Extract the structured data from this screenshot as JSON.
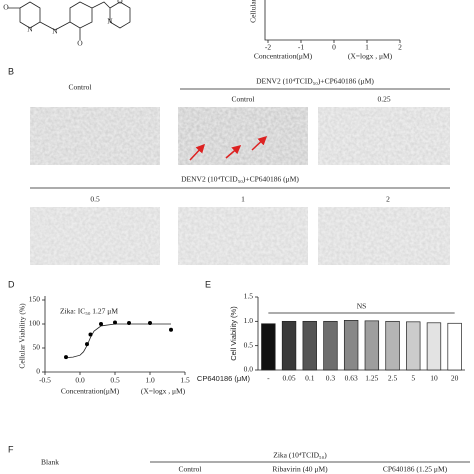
{
  "structure": {
    "atoms": [
      "O",
      "N",
      "N",
      "O",
      "N",
      "O"
    ]
  },
  "panels": {
    "B": {
      "label": "B",
      "control": "Control",
      "header": "DENV2 (10⁴TCID₅₀)+CP640186 (μM)",
      "row1": [
        "Control",
        "0.25"
      ],
      "header2": "DENV2 (10⁴TCID₅₀)+CP640186 (μM)",
      "row2": [
        "0.5",
        "1",
        "2"
      ]
    },
    "D": {
      "label": "D"
    },
    "E": {
      "label": "E"
    },
    "F": {
      "label": "F",
      "blank": "Blank",
      "header": "Zika (10⁴TCID₅₀)",
      "columns": [
        "Control",
        "Ribavirin (40 μM)",
        "CP640186 (1.25 μM)"
      ]
    }
  },
  "chart_data": [
    {
      "type": "axes",
      "ylabel": "Cellular v",
      "xlabel": "Concentration(μM)",
      "xnote": "(X=logx , μM)",
      "xlim": [
        -2,
        2
      ],
      "xticks": [
        -2,
        -1,
        0,
        1,
        2
      ]
    },
    {
      "type": "scatter",
      "annotation": "Zika: IC₅₀ 1.27 μM",
      "ylabel": "Cellular Viability (%)",
      "xlabel": "Concentration(μM)",
      "xnote": "(X=logx , μM)",
      "x": [
        -0.2,
        0.1,
        0.15,
        0.3,
        0.5,
        0.7,
        1.0,
        1.3
      ],
      "values": [
        31,
        58,
        78,
        100,
        103,
        102,
        102,
        88
      ],
      "color": "#000000",
      "curve": {
        "x": [
          -0.2,
          -0.1,
          0,
          0.05,
          0.1,
          0.15,
          0.2,
          0.3,
          0.5,
          1.0,
          1.3
        ],
        "values": [
          30,
          31,
          35,
          42,
          55,
          72,
          85,
          96,
          100,
          100,
          100
        ]
      },
      "xlim": [
        -0.5,
        1.5
      ],
      "xticks": [
        -0.5,
        {
          "value": 0,
          "label": "0.0"
        },
        0.5,
        {
          "value": 1,
          "label": "1.0"
        },
        1.5
      ],
      "ylim": [
        0,
        150
      ],
      "yticks": [
        0,
        50,
        100,
        150
      ]
    },
    {
      "type": "bar",
      "ylabel": "Cell Viability (%)",
      "xlabel": "CP640186 (μM)",
      "annotation": "NS",
      "categories": [
        "-",
        "0.05",
        "0.1",
        "0.3",
        "0.63",
        "1.25",
        "2.5",
        "5",
        "10",
        "20"
      ],
      "values": [
        0.95,
        1.0,
        1.0,
        1.0,
        1.02,
        1.01,
        1.0,
        0.99,
        0.97,
        0.96
      ],
      "colors": [
        "#111111",
        "#3a3a3a",
        "#555555",
        "#6e6e6e",
        "#888888",
        "#9e9e9e",
        "#b5b5b5",
        "#cccccc",
        "#e3e3e3",
        "#ffffff"
      ],
      "ylim": [
        0,
        1.5
      ],
      "yticks": [
        {
          "value": 0,
          "label": "0.0"
        },
        0.5,
        {
          "value": 1,
          "label": "1.0"
        },
        1.5
      ]
    }
  ]
}
